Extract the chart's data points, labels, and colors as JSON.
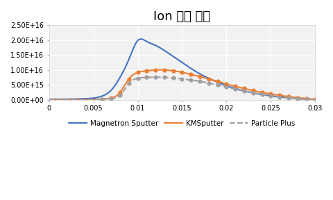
{
  "title": "Ion 밀도 분포",
  "xlim": [
    0,
    0.03
  ],
  "ylim": [
    0,
    2.5e+16
  ],
  "yticks": [
    0,
    5000000000000000.0,
    1e+16,
    1.5e+16,
    2e+16,
    2.5e+16
  ],
  "ytick_labels": [
    "0.00E+00",
    "5.00E+15",
    "1.00E+16",
    "1.50E+16",
    "2.00E+16",
    "2.50E+16"
  ],
  "xticks": [
    0,
    0.005,
    0.01,
    0.015,
    0.02,
    0.025,
    0.03
  ],
  "xtick_labels": [
    "0",
    "0.005",
    "0.01",
    "0.015",
    "0.02",
    "0.025",
    "0.03"
  ],
  "magnetron_x": [
    0.0,
    0.001,
    0.002,
    0.003,
    0.004,
    0.005,
    0.006,
    0.007,
    0.008,
    0.009,
    0.01,
    0.011,
    0.012,
    0.013,
    0.014,
    0.015,
    0.016,
    0.017,
    0.018,
    0.019,
    0.02,
    0.021,
    0.022,
    0.023,
    0.024,
    0.025,
    0.026,
    0.027,
    0.028,
    0.029,
    0.03
  ],
  "magnetron_y": [
    200000000000000.0,
    220000000000000.0,
    250000000000000.0,
    300000000000000.0,
    400000000000000.0,
    600000000000000.0,
    1300000000000000.0,
    3200000000000000.0,
    7500000000000000.0,
    1.35e+16,
    1.98e+16,
    1.95e+16,
    1.82e+16,
    1.65e+16,
    1.45e+16,
    1.25e+16,
    1.05e+16,
    8700000000000000.0,
    7200000000000000.0,
    5900000000000000.0,
    4700000000000000.0,
    3800000000000000.0,
    3000000000000000.0,
    2350000000000000.0,
    1800000000000000.0,
    1350000000000000.0,
    1000000000000000.0,
    700000000000000.0,
    450000000000000.0,
    250000000000000.0,
    100000000000000.0
  ],
  "km_x": [
    0.0,
    0.001,
    0.002,
    0.003,
    0.004,
    0.005,
    0.006,
    0.007,
    0.008,
    0.009,
    0.01,
    0.011,
    0.012,
    0.013,
    0.014,
    0.015,
    0.016,
    0.017,
    0.018,
    0.019,
    0.02,
    0.021,
    0.022,
    0.023,
    0.024,
    0.025,
    0.026,
    0.027,
    0.028,
    0.029,
    0.03
  ],
  "km_y": [
    50000000000000.0,
    60000000000000.0,
    70000000000000.0,
    80000000000000.0,
    100000000000000.0,
    150000000000000.0,
    300000000000000.0,
    600000000000000.0,
    2500000000000000.0,
    7000000000000000.0,
    9200000000000000.0,
    9700000000000000.0,
    1e+16,
    1e+16,
    9700000000000000.0,
    9200000000000000.0,
    8500000000000000.0,
    7800000000000000.0,
    7000000000000000.0,
    6200000000000000.0,
    5300000000000000.0,
    4500000000000000.0,
    3800000000000000.0,
    3100000000000000.0,
    2500000000000000.0,
    2000000000000000.0,
    1500000000000000.0,
    1100000000000000.0,
    750000000000000.0,
    450000000000000.0,
    150000000000000.0
  ],
  "pp_x": [
    0.0,
    0.001,
    0.002,
    0.003,
    0.004,
    0.005,
    0.006,
    0.007,
    0.008,
    0.009,
    0.01,
    0.011,
    0.012,
    0.013,
    0.014,
    0.015,
    0.016,
    0.017,
    0.018,
    0.019,
    0.02,
    0.021,
    0.022,
    0.023,
    0.024,
    0.025,
    0.026,
    0.027,
    0.028,
    0.029,
    0.03
  ],
  "pp_y": [
    50000000000000.0,
    60000000000000.0,
    70000000000000.0,
    80000000000000.0,
    100000000000000.0,
    150000000000000.0,
    250000000000000.0,
    450000000000000.0,
    1500000000000000.0,
    5500000000000000.0,
    7200000000000000.0,
    7500000000000000.0,
    7600000000000000.0,
    7500000000000000.0,
    7300000000000000.0,
    7000000000000000.0,
    6600000000000000.0,
    6200000000000000.0,
    5600000000000000.0,
    5000000000000000.0,
    4300000000000000.0,
    3600000000000000.0,
    2900000000000000.0,
    2300000000000000.0,
    1800000000000000.0,
    1350000000000000.0,
    950000000000000.0,
    650000000000000.0,
    400000000000000.0,
    200000000000000.0,
    50000000000000.0
  ],
  "magnetron_color": "#4472C4",
  "km_color": "#ED7D31",
  "pp_color": "#A0A0A0",
  "background_color": "#FFFFFF",
  "plot_bg_color": "#F2F2F2",
  "grid_color": "#FFFFFF",
  "title_fontsize": 13,
  "tick_fontsize": 7,
  "legend_labels": [
    "Magnetron Sputter",
    "KMSputter",
    "Particle Plus"
  ]
}
